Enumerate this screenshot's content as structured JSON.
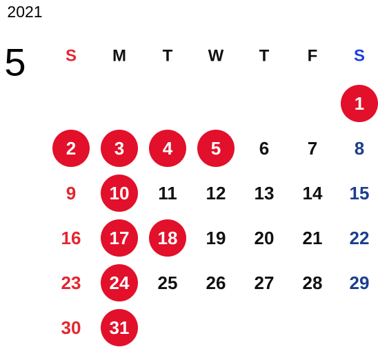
{
  "year": "2021",
  "month": "5",
  "weekdays": [
    "S",
    "M",
    "T",
    "W",
    "T",
    "F",
    "S"
  ],
  "colors": {
    "sunday": "#e3262f",
    "saturday": "#1b3f8f",
    "weekday": "#111111",
    "holiday": "#e2102a",
    "holiday_text": "#ffffff",
    "sunday_header": "#e3262f",
    "saturday_header": "#1f3fe0"
  },
  "weeks": [
    [
      null,
      null,
      null,
      null,
      null,
      null,
      {
        "day": 1,
        "holiday": true
      }
    ],
    [
      {
        "day": 2,
        "holiday": true
      },
      {
        "day": 3,
        "holiday": true
      },
      {
        "day": 4,
        "holiday": true
      },
      {
        "day": 5,
        "holiday": true
      },
      {
        "day": 6
      },
      {
        "day": 7
      },
      {
        "day": 8
      }
    ],
    [
      {
        "day": 9
      },
      {
        "day": 10,
        "holiday": true
      },
      {
        "day": 11
      },
      {
        "day": 12
      },
      {
        "day": 13
      },
      {
        "day": 14
      },
      {
        "day": 15
      }
    ],
    [
      {
        "day": 16
      },
      {
        "day": 17,
        "holiday": true
      },
      {
        "day": 18,
        "holiday": true
      },
      {
        "day": 19
      },
      {
        "day": 20
      },
      {
        "day": 21
      },
      {
        "day": 22
      }
    ],
    [
      {
        "day": 23
      },
      {
        "day": 24,
        "holiday": true
      },
      {
        "day": 25
      },
      {
        "day": 26
      },
      {
        "day": 27
      },
      {
        "day": 28
      },
      {
        "day": 29
      }
    ],
    [
      {
        "day": 30
      },
      {
        "day": 31,
        "holiday": true
      },
      null,
      null,
      null,
      null,
      null
    ]
  ]
}
